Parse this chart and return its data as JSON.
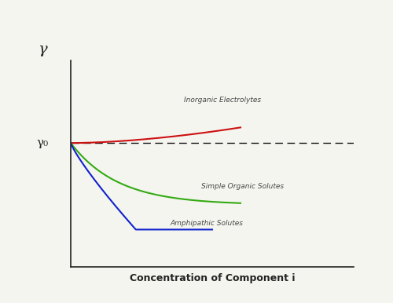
{
  "xlabel": "Concentration of Component i",
  "ylabel": "γ",
  "gamma0_label": "γ₀",
  "background_color": "#f5f5f0",
  "dashed_line_color": "#111111",
  "inorganic_color": "#cc1111",
  "organic_color": "#33aa11",
  "amphipathic_color": "#1122cc",
  "inorganic_label": "Inorganic Electrolytes",
  "organic_label": "Simple Organic Solutes",
  "amphipathic_label": "Amphipathic Solutes"
}
